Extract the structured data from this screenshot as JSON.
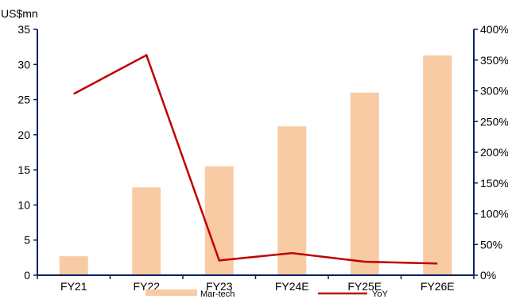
{
  "chart_data": {
    "type": "bar",
    "categories": [
      "FY21",
      "FY22",
      "FY23",
      "FY24E",
      "FY25E",
      "FY26E"
    ],
    "series": [
      {
        "name": "Mar-tech",
        "type": "bar",
        "axis": "left",
        "color": "#f8cba4",
        "values": [
          2.7,
          12.5,
          15.5,
          21.2,
          26.0,
          31.3
        ]
      },
      {
        "name": "YoY",
        "type": "line",
        "axis": "right",
        "color": "#c00000",
        "values": [
          2.95,
          3.58,
          0.24,
          0.36,
          0.22,
          0.19
        ]
      }
    ],
    "title": "",
    "xlabel": "",
    "ylabel": "US$mn",
    "ylim": [
      0,
      35
    ],
    "y_ticks": [
      "0",
      "5",
      "10",
      "15",
      "20",
      "25",
      "30",
      "35"
    ],
    "y2lim": [
      0,
      4
    ],
    "y2_ticks": [
      "0%",
      "50%",
      "100%",
      "150%",
      "200%",
      "250%",
      "300%",
      "350%",
      "400%"
    ],
    "grid": false,
    "legend_position": "bottom",
    "axis_color": "#002060"
  }
}
